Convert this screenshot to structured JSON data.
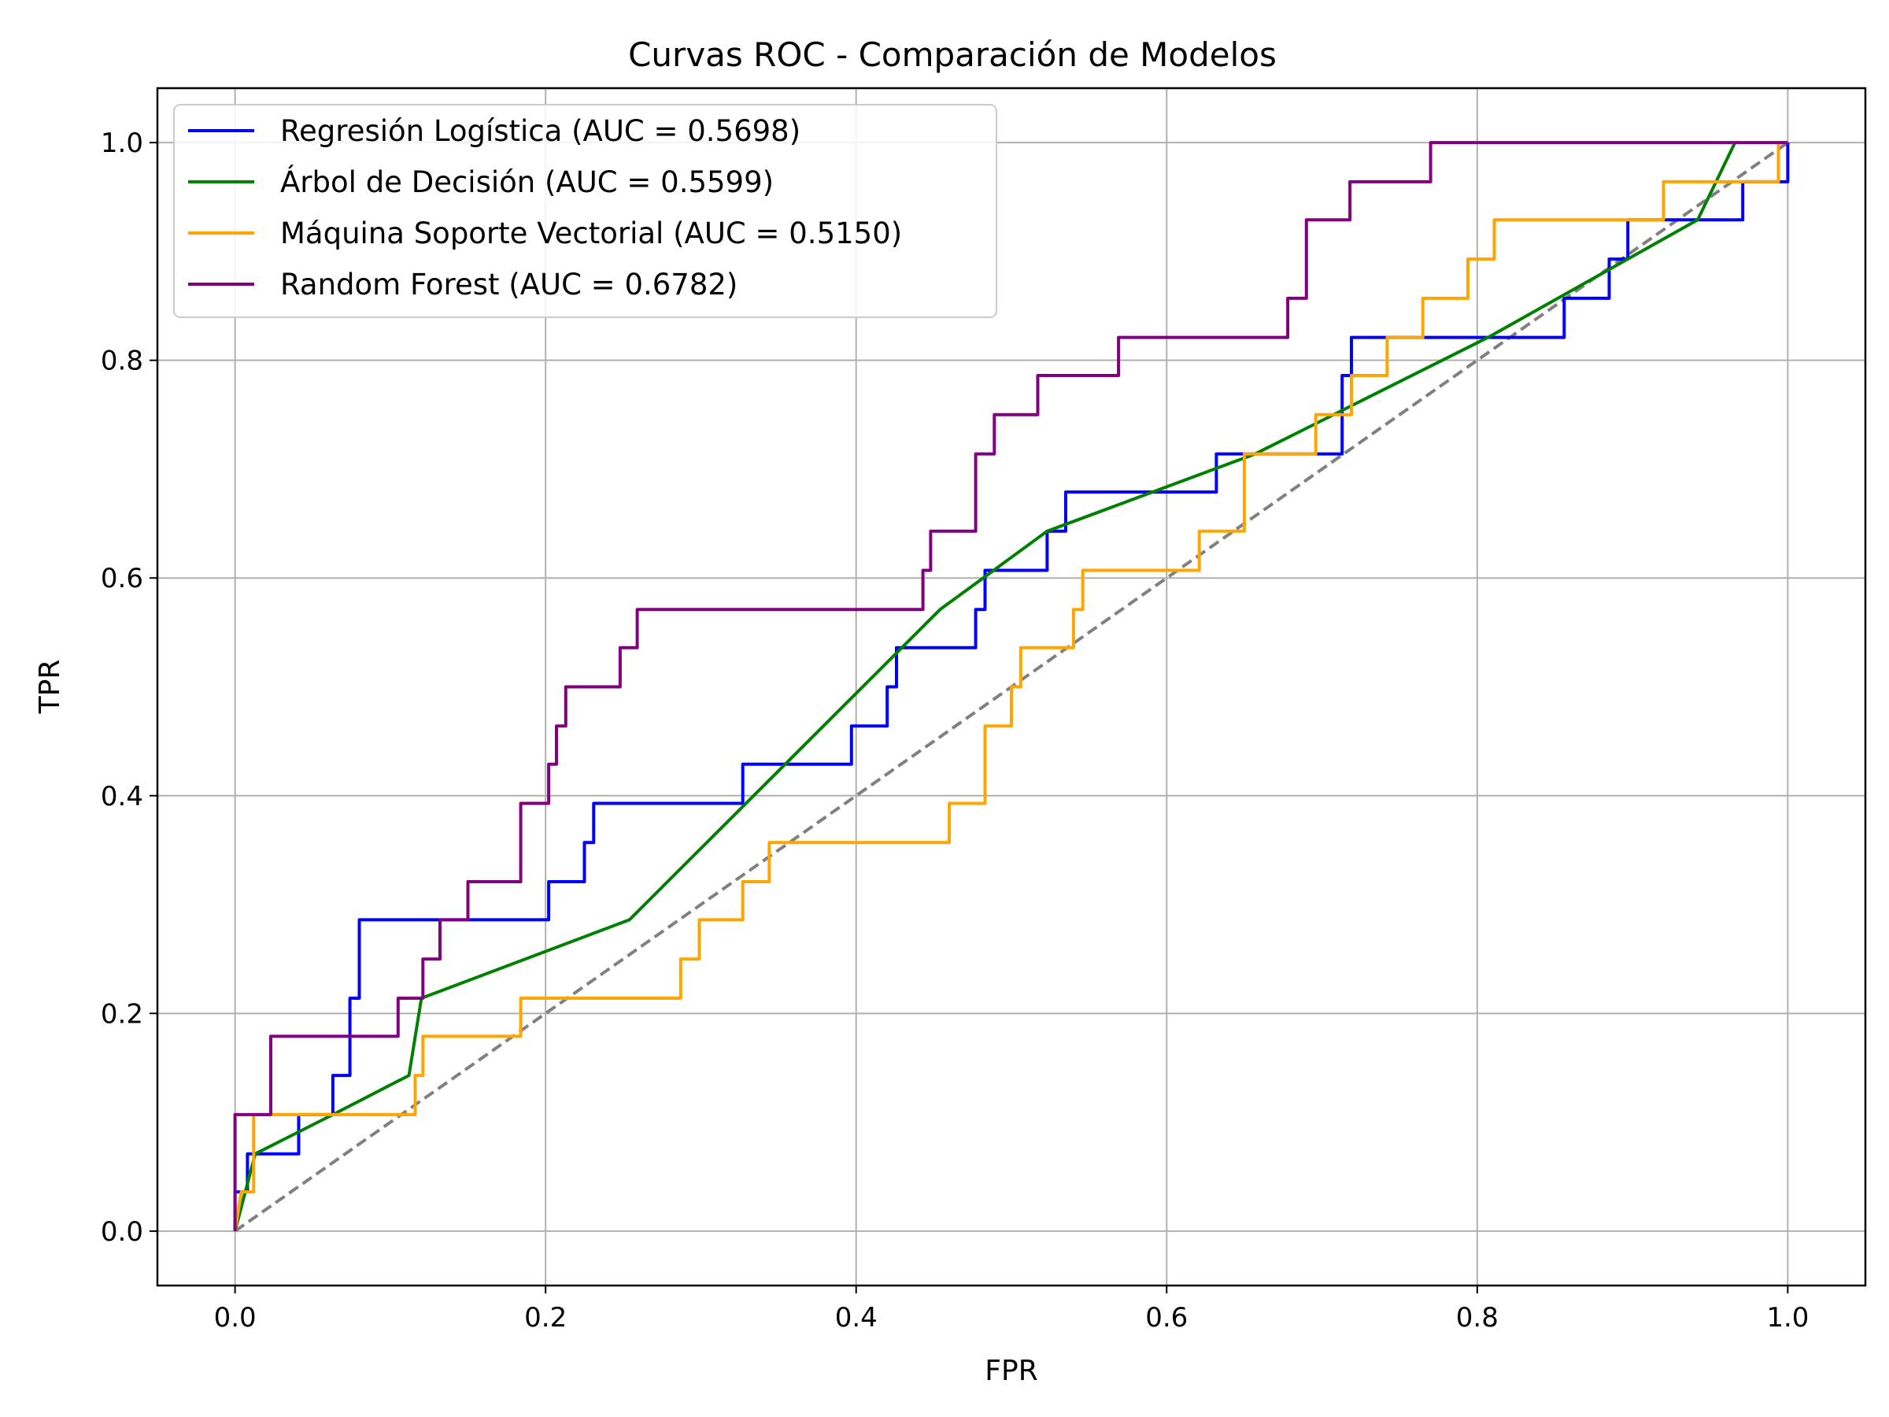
{
  "chart_data": {
    "type": "line",
    "title": "Curvas ROC - Comparación de Modelos",
    "xlabel": "FPR",
    "ylabel": "TPR",
    "xlim": [
      -0.05,
      1.05
    ],
    "ylim": [
      -0.05,
      1.05
    ],
    "xticks": [
      "0.0",
      "0.2",
      "0.4",
      "0.6",
      "0.8",
      "1.0"
    ],
    "yticks": [
      "0.0",
      "0.2",
      "0.4",
      "0.6",
      "0.8",
      "1.0"
    ],
    "grid": true,
    "legend_position": "upper-left",
    "series": [
      {
        "name": "Regresión Logística (AUC = 0.5698)",
        "color": "#0000ff",
        "points": [
          [
            0,
            0
          ],
          [
            0,
            0.036
          ],
          [
            0.008,
            0.036
          ],
          [
            0.008,
            0.071
          ],
          [
            0.041,
            0.071
          ],
          [
            0.041,
            0.107
          ],
          [
            0.063,
            0.107
          ],
          [
            0.063,
            0.143
          ],
          [
            0.074,
            0.143
          ],
          [
            0.074,
            0.214
          ],
          [
            0.08,
            0.214
          ],
          [
            0.08,
            0.286
          ],
          [
            0.202,
            0.286
          ],
          [
            0.202,
            0.321
          ],
          [
            0.225,
            0.321
          ],
          [
            0.225,
            0.357
          ],
          [
            0.231,
            0.357
          ],
          [
            0.231,
            0.393
          ],
          [
            0.327,
            0.393
          ],
          [
            0.327,
            0.429
          ],
          [
            0.397,
            0.429
          ],
          [
            0.397,
            0.464
          ],
          [
            0.42,
            0.464
          ],
          [
            0.42,
            0.5
          ],
          [
            0.426,
            0.5
          ],
          [
            0.426,
            0.536
          ],
          [
            0.477,
            0.536
          ],
          [
            0.477,
            0.571
          ],
          [
            0.483,
            0.571
          ],
          [
            0.483,
            0.607
          ],
          [
            0.523,
            0.607
          ],
          [
            0.523,
            0.643
          ],
          [
            0.535,
            0.643
          ],
          [
            0.535,
            0.679
          ],
          [
            0.632,
            0.679
          ],
          [
            0.632,
            0.714
          ],
          [
            0.713,
            0.714
          ],
          [
            0.713,
            0.786
          ],
          [
            0.719,
            0.786
          ],
          [
            0.719,
            0.821
          ],
          [
            0.856,
            0.821
          ],
          [
            0.856,
            0.857
          ],
          [
            0.885,
            0.857
          ],
          [
            0.885,
            0.893
          ],
          [
            0.897,
            0.893
          ],
          [
            0.897,
            0.929
          ],
          [
            0.971,
            0.929
          ],
          [
            0.971,
            0.964
          ],
          [
            1.0,
            0.964
          ],
          [
            1.0,
            1.0
          ]
        ]
      },
      {
        "name": "Árbol de Decisión (AUC = 0.5599)",
        "color": "#008000",
        "points": [
          [
            0,
            0
          ],
          [
            0.013,
            0.071
          ],
          [
            0.063,
            0.107
          ],
          [
            0.112,
            0.143
          ],
          [
            0.12,
            0.214
          ],
          [
            0.254,
            0.286
          ],
          [
            0.454,
            0.571
          ],
          [
            0.523,
            0.643
          ],
          [
            0.657,
            0.714
          ],
          [
            0.807,
            0.821
          ],
          [
            0.942,
            0.929
          ],
          [
            0.966,
            1.0
          ]
        ]
      },
      {
        "name": "Máquina Soporte Vectorial (AUC = 0.5150)",
        "color": "#ffa500",
        "points": [
          [
            0,
            0
          ],
          [
            0.004,
            0.036
          ],
          [
            0.012,
            0.036
          ],
          [
            0.012,
            0.107
          ],
          [
            0.116,
            0.107
          ],
          [
            0.116,
            0.143
          ],
          [
            0.121,
            0.143
          ],
          [
            0.121,
            0.179
          ],
          [
            0.184,
            0.179
          ],
          [
            0.184,
            0.214
          ],
          [
            0.287,
            0.214
          ],
          [
            0.287,
            0.25
          ],
          [
            0.299,
            0.25
          ],
          [
            0.299,
            0.286
          ],
          [
            0.327,
            0.286
          ],
          [
            0.327,
            0.321
          ],
          [
            0.344,
            0.321
          ],
          [
            0.344,
            0.357
          ],
          [
            0.46,
            0.357
          ],
          [
            0.46,
            0.393
          ],
          [
            0.483,
            0.393
          ],
          [
            0.483,
            0.464
          ],
          [
            0.5,
            0.464
          ],
          [
            0.5,
            0.5
          ],
          [
            0.506,
            0.5
          ],
          [
            0.506,
            0.536
          ],
          [
            0.54,
            0.536
          ],
          [
            0.54,
            0.571
          ],
          [
            0.546,
            0.571
          ],
          [
            0.546,
            0.607
          ],
          [
            0.621,
            0.607
          ],
          [
            0.621,
            0.643
          ],
          [
            0.65,
            0.643
          ],
          [
            0.65,
            0.714
          ],
          [
            0.696,
            0.714
          ],
          [
            0.696,
            0.75
          ],
          [
            0.719,
            0.75
          ],
          [
            0.719,
            0.786
          ],
          [
            0.742,
            0.786
          ],
          [
            0.742,
            0.821
          ],
          [
            0.765,
            0.821
          ],
          [
            0.765,
            0.857
          ],
          [
            0.794,
            0.857
          ],
          [
            0.794,
            0.893
          ],
          [
            0.811,
            0.893
          ],
          [
            0.811,
            0.929
          ],
          [
            0.92,
            0.929
          ],
          [
            0.92,
            0.964
          ],
          [
            0.994,
            0.964
          ],
          [
            0.994,
            1.0
          ],
          [
            1.0,
            1.0
          ]
        ]
      },
      {
        "name": "Random Forest (AUC = 0.6782)",
        "color": "#800080",
        "points": [
          [
            0,
            0
          ],
          [
            0,
            0.107
          ],
          [
            0.023,
            0.107
          ],
          [
            0.023,
            0.179
          ],
          [
            0.105,
            0.179
          ],
          [
            0.105,
            0.214
          ],
          [
            0.121,
            0.214
          ],
          [
            0.121,
            0.25
          ],
          [
            0.132,
            0.25
          ],
          [
            0.132,
            0.286
          ],
          [
            0.15,
            0.286
          ],
          [
            0.15,
            0.321
          ],
          [
            0.184,
            0.321
          ],
          [
            0.184,
            0.393
          ],
          [
            0.202,
            0.393
          ],
          [
            0.202,
            0.429
          ],
          [
            0.207,
            0.429
          ],
          [
            0.207,
            0.464
          ],
          [
            0.213,
            0.464
          ],
          [
            0.213,
            0.5
          ],
          [
            0.248,
            0.5
          ],
          [
            0.248,
            0.536
          ],
          [
            0.259,
            0.536
          ],
          [
            0.259,
            0.571
          ],
          [
            0.443,
            0.571
          ],
          [
            0.443,
            0.607
          ],
          [
            0.448,
            0.607
          ],
          [
            0.448,
            0.643
          ],
          [
            0.477,
            0.643
          ],
          [
            0.477,
            0.714
          ],
          [
            0.489,
            0.714
          ],
          [
            0.489,
            0.75
          ],
          [
            0.517,
            0.75
          ],
          [
            0.517,
            0.786
          ],
          [
            0.569,
            0.786
          ],
          [
            0.569,
            0.821
          ],
          [
            0.678,
            0.821
          ],
          [
            0.678,
            0.857
          ],
          [
            0.69,
            0.857
          ],
          [
            0.69,
            0.929
          ],
          [
            0.718,
            0.929
          ],
          [
            0.718,
            0.964
          ],
          [
            0.77,
            0.964
          ],
          [
            0.77,
            1.0
          ],
          [
            1.0,
            1.0
          ]
        ]
      },
      {
        "color": "#808080",
        "dashed": true,
        "points": [
          [
            0,
            0
          ],
          [
            1,
            1
          ]
        ]
      }
    ]
  }
}
